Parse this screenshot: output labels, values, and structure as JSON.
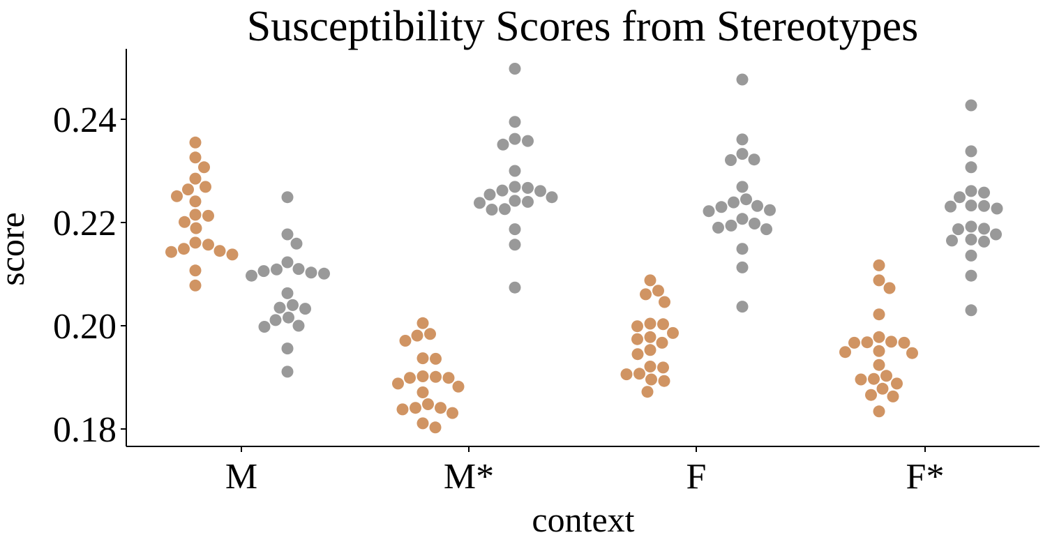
{
  "chart_data": {
    "type": "scatter",
    "subtype": "swarm",
    "title": "Susceptibility Scores from Stereotypes",
    "xlabel": "context",
    "ylabel": "score",
    "categories": [
      "M",
      "M*",
      "F",
      "F*"
    ],
    "ylim": [
      0.1765,
      0.253
    ],
    "yticks": [
      0.18,
      0.2,
      0.22,
      0.24
    ],
    "ytick_labels": [
      "0.18",
      "0.20",
      "0.22",
      "0.24"
    ],
    "grid": false,
    "series": [
      {
        "name": "orange",
        "color": "#D09463",
        "groups": [
          [
            0.2355,
            0.2326,
            0.2307,
            0.2285,
            0.2269,
            0.2264,
            0.2251,
            0.2241,
            0.2215,
            0.2213,
            0.2201,
            0.2189,
            0.2161,
            0.2157,
            0.2149,
            0.2145,
            0.2143,
            0.2138,
            0.2107,
            0.2078
          ],
          [
            0.2005,
            0.1984,
            0.1981,
            0.1971,
            0.1937,
            0.1936,
            0.1902,
            0.1901,
            0.1899,
            0.1899,
            0.1888,
            0.1882,
            0.1871,
            0.1848,
            0.1841,
            0.1841,
            0.1838,
            0.1831,
            0.1811,
            0.1803
          ],
          [
            0.2088,
            0.2068,
            0.2061,
            0.2046,
            0.2004,
            0.2003,
            0.1999,
            0.1986,
            0.1978,
            0.1974,
            0.1967,
            0.1953,
            0.1945,
            0.1921,
            0.1919,
            0.1907,
            0.1906,
            0.1896,
            0.1893,
            0.1872
          ],
          [
            0.2117,
            0.2088,
            0.2073,
            0.2022,
            0.1978,
            0.1969,
            0.1968,
            0.1967,
            0.1967,
            0.1951,
            0.1949,
            0.1947,
            0.1924,
            0.1903,
            0.1897,
            0.1896,
            0.1888,
            0.1878,
            0.1866,
            0.1863,
            0.1834
          ]
        ]
      },
      {
        "name": "gray",
        "color": "#999999",
        "groups": [
          [
            0.2249,
            0.2177,
            0.2159,
            0.2123,
            0.211,
            0.2109,
            0.2106,
            0.2103,
            0.2101,
            0.2097,
            0.2063,
            0.204,
            0.2035,
            0.2033,
            0.2016,
            0.2011,
            0.2,
            0.1998,
            0.1956,
            0.1911
          ],
          [
            0.2498,
            0.2395,
            0.2362,
            0.2358,
            0.2351,
            0.23,
            0.2269,
            0.2267,
            0.2262,
            0.2261,
            0.2254,
            0.2249,
            0.2242,
            0.224,
            0.2238,
            0.2226,
            0.2225,
            0.2187,
            0.2157,
            0.2074
          ],
          [
            0.2477,
            0.2361,
            0.2333,
            0.2322,
            0.2321,
            0.2269,
            0.2245,
            0.2239,
            0.2232,
            0.223,
            0.2224,
            0.2222,
            0.2207,
            0.2198,
            0.2194,
            0.219,
            0.2187,
            0.2149,
            0.2113,
            0.2037
          ],
          [
            0.2427,
            0.2338,
            0.2307,
            0.2261,
            0.2258,
            0.2249,
            0.2233,
            0.2232,
            0.2231,
            0.2227,
            0.2192,
            0.2188,
            0.2187,
            0.2177,
            0.2167,
            0.2165,
            0.2163,
            0.2136,
            0.2097,
            0.203
          ]
        ]
      }
    ]
  }
}
